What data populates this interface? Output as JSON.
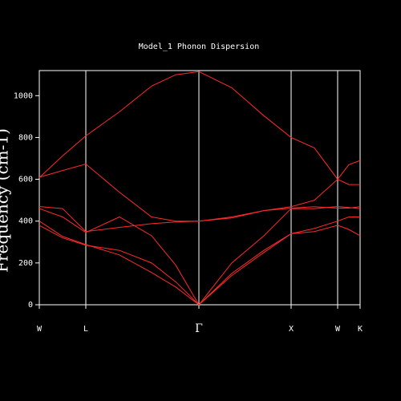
{
  "chart_data": {
    "type": "line",
    "title": "Model_1 Phonon Dispersion",
    "y_label": "Frequency (cm-1)",
    "x": [
      0,
      29,
      58,
      100,
      140,
      170,
      199,
      240,
      280,
      314,
      343,
      372,
      386,
      400
    ],
    "xlim": [
      0,
      400
    ],
    "xticks": [
      {
        "value": 0,
        "label": "W"
      },
      {
        "value": 58,
        "label": "L"
      },
      {
        "value": 199,
        "label": "Γ"
      },
      {
        "value": 314,
        "label": "X"
      },
      {
        "value": 372,
        "label": "W"
      },
      {
        "value": 400,
        "label": "K"
      }
    ],
    "ylim": [
      0,
      1120
    ],
    "yticks": [
      0,
      200,
      400,
      600,
      800,
      1000
    ],
    "color": "#ff2a2a",
    "series": [
      {
        "values": [
          608,
          712,
          808,
          923,
          1046,
          1100,
          1115,
          1038,
          904,
          800,
          750,
          600,
          575,
          575
        ]
      },
      {
        "values": [
          610,
          642,
          673,
          538,
          420,
          400,
          400,
          420,
          450,
          469,
          500,
          600,
          670,
          690
        ]
      },
      {
        "values": [
          470,
          460,
          350,
          370,
          388,
          396,
          400,
          415,
          450,
          462,
          469,
          462,
          462,
          469
        ]
      },
      {
        "values": [
          460,
          420,
          346,
          420,
          330,
          190,
          0,
          200,
          330,
          460,
          460,
          470,
          465,
          460
        ]
      },
      {
        "values": [
          400,
          327,
          288,
          238,
          154,
          85,
          0,
          150,
          260,
          340,
          365,
          400,
          420,
          420
        ]
      },
      {
        "values": [
          380,
          320,
          285,
          260,
          200,
          110,
          0,
          140,
          250,
          340,
          350,
          380,
          360,
          330
        ]
      }
    ]
  }
}
